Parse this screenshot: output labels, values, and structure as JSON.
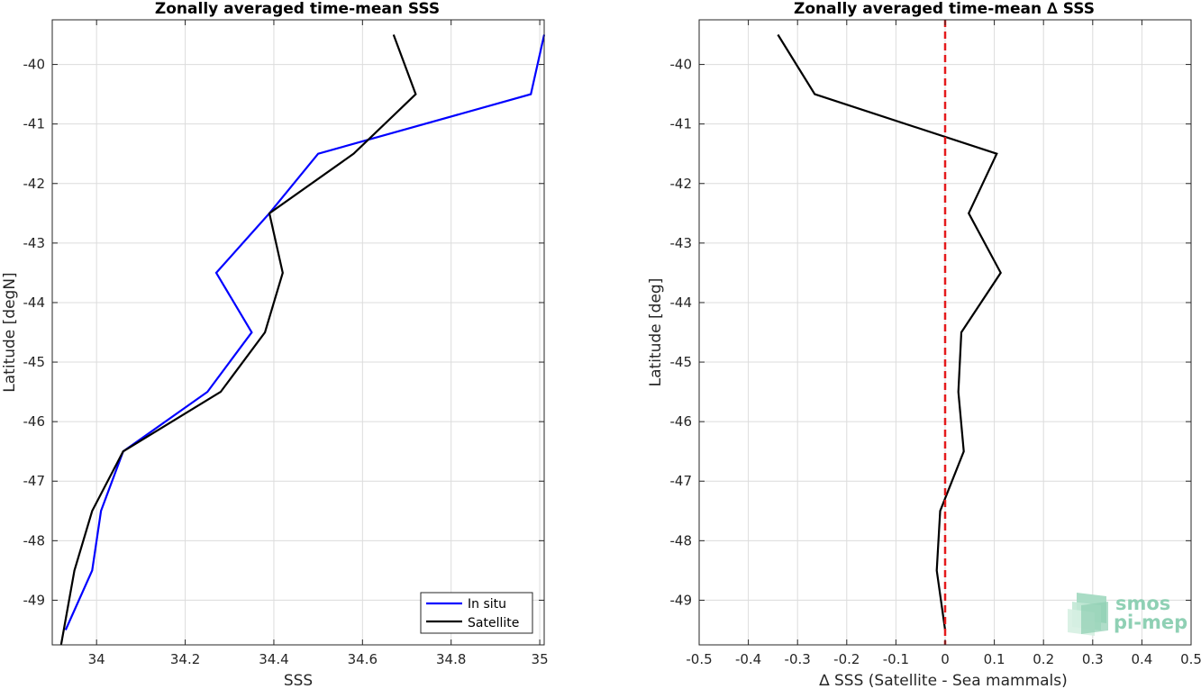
{
  "chart_data": [
    {
      "type": "line",
      "title": "Zonally averaged time-mean SSS",
      "xlabel": "SSS",
      "ylabel": "Latitude [degN]",
      "xlim": [
        33.9,
        35.01
      ],
      "ylim": [
        -49.75,
        -39.25
      ],
      "xticks": [
        34,
        34.2,
        34.4,
        34.6,
        34.8,
        35
      ],
      "xtick_labels": [
        "34",
        "34.2",
        "34.4",
        "34.6",
        "34.8",
        "35"
      ],
      "yticks": [
        -40,
        -41,
        -42,
        -43,
        -44,
        -45,
        -46,
        -47,
        -48,
        -49
      ],
      "ytick_labels": [
        "-40",
        "-41",
        "-42",
        "-43",
        "-44",
        "-45",
        "-46",
        "-47",
        "-48",
        "-49"
      ],
      "grid": true,
      "legend_position": "bottom-right",
      "series": [
        {
          "name": "In situ",
          "color": "#0000ff",
          "x": [
            35.01,
            34.98,
            34.5,
            34.39,
            34.27,
            34.35,
            34.25,
            34.06,
            34.01,
            33.99,
            33.93
          ],
          "y": [
            -39.5,
            -40.5,
            -41.5,
            -42.5,
            -43.5,
            -44.5,
            -45.5,
            -46.5,
            -47.5,
            -48.5,
            -49.5
          ]
        },
        {
          "name": "Satellite",
          "color": "#000000",
          "x": [
            34.67,
            34.72,
            34.58,
            34.39,
            34.42,
            34.38,
            34.28,
            34.06,
            33.99,
            33.95,
            33.92
          ],
          "y": [
            -39.5,
            -40.5,
            -41.5,
            -42.5,
            -43.5,
            -44.5,
            -45.5,
            -46.5,
            -47.5,
            -48.5,
            -49.75
          ]
        }
      ]
    },
    {
      "type": "line",
      "title": "Zonally averaged time-mean ∆ SSS",
      "xlabel": "∆ SSS (Satellite - Sea mammals)",
      "ylabel": "Latitude [deg]",
      "xlim": [
        -0.5,
        0.5
      ],
      "ylim": [
        -49.75,
        -39.25
      ],
      "xticks": [
        -0.5,
        -0.4,
        -0.3,
        -0.2,
        -0.1,
        0,
        0.1,
        0.2,
        0.3,
        0.4,
        0.5
      ],
      "xtick_labels": [
        "-0.5",
        "-0.4",
        "-0.3",
        "-0.2",
        "-0.1",
        "0",
        "0.1",
        "0.2",
        "0.3",
        "0.4",
        "0.5"
      ],
      "yticks": [
        -40,
        -41,
        -42,
        -43,
        -44,
        -45,
        -46,
        -47,
        -48,
        -49
      ],
      "ytick_labels": [
        "-40",
        "-41",
        "-42",
        "-43",
        "-44",
        "-45",
        "-46",
        "-47",
        "-48",
        "-49"
      ],
      "grid": true,
      "series": [
        {
          "color": "#000000",
          "x": [
            -0.34,
            -0.265,
            0.105,
            0.048,
            0.113,
            0.033,
            0.027,
            0.038,
            -0.01,
            -0.017,
            0.0
          ],
          "y": [
            -39.5,
            -40.5,
            -41.5,
            -42.5,
            -43.5,
            -44.5,
            -45.5,
            -46.5,
            -47.5,
            -48.5,
            -49.5
          ]
        }
      ],
      "reference_line": {
        "x": 0,
        "color": "#e41a1c",
        "style": "dashed"
      }
    }
  ],
  "logo": {
    "line1": "smos",
    "line2": "pi-mep"
  }
}
